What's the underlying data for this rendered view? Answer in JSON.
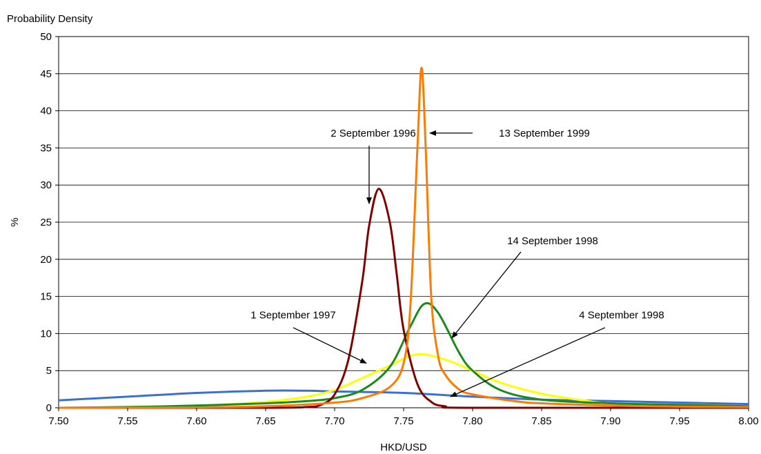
{
  "chart_data": {
    "type": "line",
    "title": "",
    "ylabel_top": "Probability Density",
    "ylabel": "%",
    "xlabel": "HKD/USD",
    "xlim": [
      7.5,
      8.0
    ],
    "ylim": [
      0,
      50
    ],
    "xticks": [
      "7.50",
      "7.55",
      "7.60",
      "7.65",
      "7.70",
      "7.75",
      "7.80",
      "7.85",
      "7.90",
      "7.95",
      "8.00"
    ],
    "yticks": [
      "0",
      "5",
      "10",
      "15",
      "20",
      "25",
      "30",
      "35",
      "40",
      "45",
      "50"
    ],
    "grid": "horizontal",
    "legend": "none",
    "series": [
      {
        "name": "4 September 1998",
        "color": "#3a6fd8",
        "x": [
          7.5,
          7.55,
          7.6,
          7.65,
          7.68,
          7.7,
          7.75,
          7.8,
          7.85,
          7.9,
          7.95,
          8.0
        ],
        "y": [
          1.0,
          1.5,
          2.0,
          2.3,
          2.3,
          2.2,
          2.0,
          1.5,
          1.1,
          0.9,
          0.7,
          0.5
        ]
      },
      {
        "name": "1 September 1997",
        "color": "#ffff00",
        "x": [
          7.5,
          7.55,
          7.6,
          7.65,
          7.68,
          7.7,
          7.72,
          7.74,
          7.76,
          7.78,
          7.8,
          7.82,
          7.85,
          7.88,
          7.9,
          7.95,
          8.0
        ],
        "y": [
          0.0,
          0.1,
          0.3,
          0.8,
          1.5,
          2.4,
          4.0,
          5.7,
          7.2,
          6.5,
          5.0,
          3.4,
          1.9,
          1.0,
          0.6,
          0.3,
          0.1
        ]
      },
      {
        "name": "14 September 1998",
        "color": "#1a8a1a",
        "x": [
          7.5,
          7.55,
          7.6,
          7.65,
          7.68,
          7.7,
          7.72,
          7.74,
          7.755,
          7.765,
          7.775,
          7.79,
          7.8,
          7.82,
          7.85,
          7.9,
          7.95,
          8.0
        ],
        "y": [
          0.0,
          0.1,
          0.3,
          0.6,
          0.9,
          1.3,
          2.4,
          5.5,
          11.0,
          14.0,
          12.8,
          7.5,
          5.0,
          2.4,
          1.1,
          0.6,
          0.4,
          0.2
        ]
      },
      {
        "name": "2 September 1996",
        "color": "#800000",
        "x": [
          7.5,
          7.65,
          7.68,
          7.69,
          7.7,
          7.71,
          7.72,
          7.725,
          7.732,
          7.74,
          7.745,
          7.75,
          7.76,
          7.77,
          7.78,
          7.8,
          8.0
        ],
        "y": [
          0.0,
          0.0,
          0.1,
          0.4,
          1.8,
          6.5,
          17.0,
          24.5,
          29.5,
          25.0,
          18.0,
          10.5,
          3.2,
          0.8,
          0.2,
          0.0,
          0.0
        ]
      },
      {
        "name": "13 September 1999",
        "color": "#ff7a00",
        "x": [
          7.5,
          7.6,
          7.65,
          7.7,
          7.72,
          7.74,
          7.75,
          7.755,
          7.76,
          7.763,
          7.766,
          7.77,
          7.775,
          7.78,
          7.79,
          7.8,
          7.83,
          7.85,
          7.9,
          7.95,
          8.0
        ],
        "y": [
          0.0,
          0.05,
          0.2,
          0.7,
          1.3,
          2.8,
          6.0,
          14.0,
          35.0,
          45.8,
          35.0,
          15.0,
          7.0,
          4.5,
          2.5,
          1.8,
          0.9,
          0.6,
          0.3,
          0.15,
          0.1
        ]
      }
    ],
    "annotations": [
      {
        "text": "2 September 1996",
        "label_x": 7.728,
        "label_y": 37,
        "arrow_from": [
          7.725,
          35.3
        ],
        "arrow_to": [
          7.725,
          27.5
        ]
      },
      {
        "text": "13 September 1999",
        "label_x": 7.852,
        "label_y": 37,
        "arrow_from": [
          7.8,
          37.0
        ],
        "arrow_to": [
          7.769,
          37.0
        ]
      },
      {
        "text": "14 September 1998",
        "label_x": 7.858,
        "label_y": 22.5,
        "arrow_from": [
          7.835,
          21.0
        ],
        "arrow_to": [
          7.785,
          9.4
        ]
      },
      {
        "text": "1 September 1997",
        "label_x": 7.67,
        "label_y": 12.5,
        "arrow_from": [
          7.67,
          10.8
        ],
        "arrow_to": [
          7.723,
          6.0
        ]
      },
      {
        "text": "4 September 1998",
        "label_x": 7.908,
        "label_y": 12.5,
        "arrow_from": [
          7.896,
          10.8
        ],
        "arrow_to": [
          7.784,
          1.5
        ]
      }
    ]
  }
}
